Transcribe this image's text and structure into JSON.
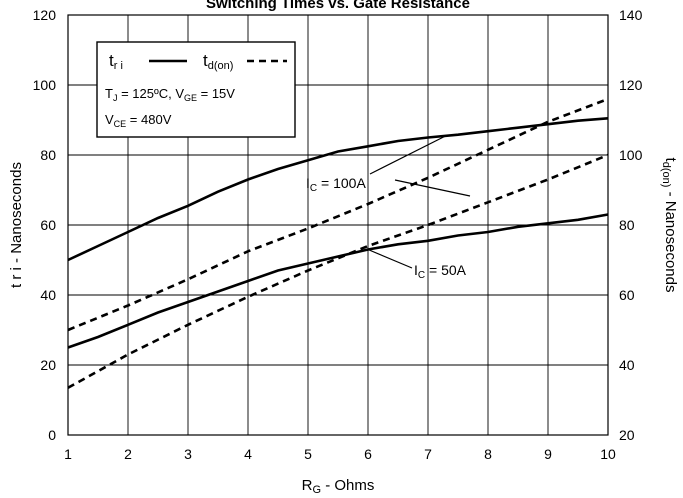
{
  "chart_data": {
    "type": "line",
    "title": "Switching Times vs. Gate Resistance",
    "xlabel": {
      "main": "R",
      "sub": "G",
      "rest": " - Ohms"
    },
    "ylabel_left": "t r i - Nanoseconds",
    "ylabel_right": {
      "main": "t",
      "sub": "d(on)",
      "rest": " - Nanoseconds"
    },
    "xlim": [
      1,
      10
    ],
    "ylim_left": [
      0,
      120
    ],
    "ylim_right": [
      20,
      140
    ],
    "x_ticks": [
      1,
      2,
      3,
      4,
      5,
      6,
      7,
      8,
      9,
      10
    ],
    "y_ticks_left": [
      0,
      20,
      40,
      60,
      80,
      100,
      120
    ],
    "y_ticks_right": [
      20,
      40,
      60,
      80,
      100,
      120,
      140
    ],
    "grid": true,
    "legend": {
      "position": "top-left",
      "tri": {
        "main": "t",
        "sub": "r i"
      },
      "tdon": {
        "main": "t",
        "sub": "d(on)"
      },
      "cond1": {
        "a": "T",
        "a_sub": "J",
        "b": " = 125ºC,  V",
        "b_sub": "GE",
        "c": " = 15V"
      },
      "cond2": {
        "a": "V",
        "a_sub": "CE",
        "b": " = 480V"
      }
    },
    "annotations": [
      {
        "id": "ic100",
        "main": "I",
        "sub": "C",
        "rest": " = 100A"
      },
      {
        "id": "ic50",
        "main": "I",
        "sub": "C",
        "rest": " = 50A"
      }
    ],
    "series": [
      {
        "id": "tri_100",
        "axis": "left",
        "style": "solid",
        "x": [
          1,
          1.5,
          2,
          2.5,
          3,
          3.5,
          4,
          4.5,
          5,
          5.5,
          6,
          6.5,
          7,
          7.5,
          8,
          8.5,
          9,
          9.5,
          10
        ],
        "y": [
          50,
          54,
          58,
          62,
          65.5,
          69.5,
          73,
          76,
          78.5,
          81,
          82.5,
          84,
          85,
          85.8,
          86.8,
          87.8,
          88.8,
          89.8,
          90.5
        ]
      },
      {
        "id": "tri_50",
        "axis": "left",
        "style": "solid",
        "x": [
          1,
          1.5,
          2,
          2.5,
          3,
          3.5,
          4,
          4.5,
          5,
          5.5,
          6,
          6.5,
          7,
          7.5,
          8,
          8.5,
          9,
          9.5,
          10
        ],
        "y": [
          25,
          28,
          31.5,
          35,
          38,
          41,
          44,
          47,
          49,
          51,
          53,
          54.5,
          55.5,
          57,
          58,
          59.5,
          60.5,
          61.5,
          63
        ]
      },
      {
        "id": "tdon_100",
        "axis": "right",
        "style": "dashed",
        "x": [
          1,
          2,
          3,
          4,
          5,
          6,
          7,
          8,
          9,
          10
        ],
        "y": [
          50,
          57,
          64.5,
          72.5,
          79,
          86,
          93.5,
          101.5,
          109.5,
          116
        ]
      },
      {
        "id": "tdon_50",
        "axis": "right",
        "style": "dashed",
        "x": [
          1,
          2,
          3,
          4,
          5,
          6,
          7,
          8,
          9,
          10
        ],
        "y": [
          33.5,
          43,
          51.5,
          59.5,
          67,
          74,
          80,
          86.5,
          93,
          100
        ]
      }
    ]
  }
}
